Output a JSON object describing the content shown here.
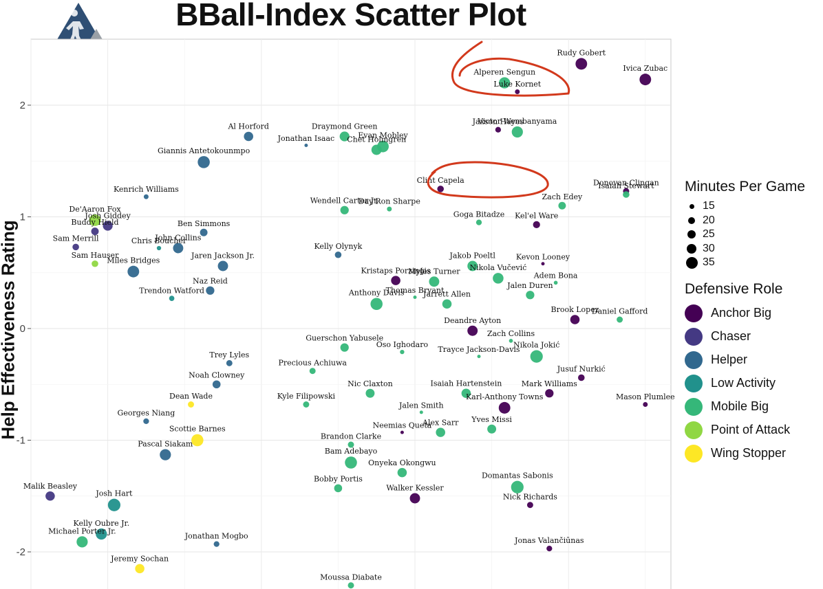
{
  "title": "BBall-Index Scatter Plot",
  "chart_data": {
    "type": "scatter",
    "title": "BBall-Index Scatter Plot",
    "xlabel": "",
    "ylabel": "Help Effectiveness Rating",
    "xlim": [
      0,
      1
    ],
    "ylim": [
      -2.3,
      2.6
    ],
    "y_ticks": [
      -2,
      -1,
      0,
      1,
      2
    ],
    "y_tick_labels": [
      "-2",
      "-1",
      "0",
      "1",
      "2"
    ],
    "grid": true,
    "legend_position": "right",
    "size_legend": {
      "title": "Minutes Per Game",
      "values": [
        15,
        20,
        25,
        30,
        35
      ]
    },
    "color_legend": {
      "title": "Defensive Role",
      "roles": [
        {
          "name": "Anchor Big",
          "color": "#440154"
        },
        {
          "name": "Chaser",
          "color": "#443983"
        },
        {
          "name": "Helper",
          "color": "#31688e"
        },
        {
          "name": "Low Activity",
          "color": "#21918c"
        },
        {
          "name": "Mobile Big",
          "color": "#35b779"
        },
        {
          "name": "Point of Attack",
          "color": "#90d743"
        },
        {
          "name": "Wing Stopper",
          "color": "#fde725"
        }
      ]
    },
    "points": [
      {
        "label": "Rudy Gobert",
        "x": 0.86,
        "y": 2.37,
        "role": "Anchor Big",
        "mpg": 33
      },
      {
        "label": "Ivica Zubac",
        "x": 0.96,
        "y": 2.23,
        "role": "Anchor Big",
        "mpg": 33
      },
      {
        "label": "Alperen Sengun",
        "x": 0.74,
        "y": 2.2,
        "role": "Mobile Big",
        "mpg": 32
      },
      {
        "label": "Luke Kornet",
        "x": 0.76,
        "y": 2.12,
        "role": "Anchor Big",
        "mpg": 18
      },
      {
        "label": "Jaxson Hayes",
        "x": 0.73,
        "y": 1.78,
        "role": "Anchor Big",
        "mpg": 20
      },
      {
        "label": "Victor Wembanyama",
        "x": 0.76,
        "y": 1.76,
        "role": "Mobile Big",
        "mpg": 32
      },
      {
        "label": "Al Horford",
        "x": 0.34,
        "y": 1.72,
        "role": "Helper",
        "mpg": 28
      },
      {
        "label": "Draymond Green",
        "x": 0.49,
        "y": 1.72,
        "role": "Mobile Big",
        "mpg": 29
      },
      {
        "label": "Jonathan Isaac",
        "x": 0.43,
        "y": 1.64,
        "role": "Helper",
        "mpg": 15
      },
      {
        "label": "Evan Mobley",
        "x": 0.55,
        "y": 1.63,
        "role": "Mobile Big",
        "mpg": 33
      },
      {
        "label": "Chet Holmgren",
        "x": 0.54,
        "y": 1.6,
        "role": "Mobile Big",
        "mpg": 30
      },
      {
        "label": "Giannis Antetokounmpo",
        "x": 0.27,
        "y": 1.49,
        "role": "Helper",
        "mpg": 34
      },
      {
        "label": "Clint Capela",
        "x": 0.64,
        "y": 1.25,
        "role": "Anchor Big",
        "mpg": 22
      },
      {
        "label": "Donovan Clingan",
        "x": 0.93,
        "y": 1.23,
        "role": "Anchor Big",
        "mpg": 21
      },
      {
        "label": "Kenrich Williams",
        "x": 0.18,
        "y": 1.18,
        "role": "Helper",
        "mpg": 18
      },
      {
        "label": "Isaiah Stewart",
        "x": 0.93,
        "y": 1.2,
        "role": "Mobile Big",
        "mpg": 22
      },
      {
        "label": "Day'Ron Sharpe",
        "x": 0.56,
        "y": 1.07,
        "role": "Mobile Big",
        "mpg": 18
      },
      {
        "label": "Wendell Carter Jr.",
        "x": 0.49,
        "y": 1.06,
        "role": "Mobile Big",
        "mpg": 26
      },
      {
        "label": "Zach Edey",
        "x": 0.83,
        "y": 1.1,
        "role": "Mobile Big",
        "mpg": 24
      },
      {
        "label": "De'Aaron Fox",
        "x": 0.1,
        "y": 0.97,
        "role": "Point of Attack",
        "mpg": 33
      },
      {
        "label": "Josh Giddey",
        "x": 0.12,
        "y": 0.92,
        "role": "Chaser",
        "mpg": 29
      },
      {
        "label": "Goga Bitadze",
        "x": 0.7,
        "y": 0.95,
        "role": "Mobile Big",
        "mpg": 20
      },
      {
        "label": "Kel'el Ware",
        "x": 0.79,
        "y": 0.93,
        "role": "Anchor Big",
        "mpg": 23
      },
      {
        "label": "Ben Simmons",
        "x": 0.27,
        "y": 0.86,
        "role": "Helper",
        "mpg": 24
      },
      {
        "label": "Buddy Hield",
        "x": 0.1,
        "y": 0.87,
        "role": "Chaser",
        "mpg": 24
      },
      {
        "label": "Chris Boucher",
        "x": 0.2,
        "y": 0.72,
        "role": "Low Activity",
        "mpg": 17
      },
      {
        "label": "John Collins",
        "x": 0.23,
        "y": 0.72,
        "role": "Helper",
        "mpg": 30
      },
      {
        "label": "Sam Merrill",
        "x": 0.07,
        "y": 0.73,
        "role": "Chaser",
        "mpg": 22
      },
      {
        "label": "Kelly Olynyk",
        "x": 0.48,
        "y": 0.66,
        "role": "Helper",
        "mpg": 22
      },
      {
        "label": "Sam Hauser",
        "x": 0.1,
        "y": 0.58,
        "role": "Point of Attack",
        "mpg": 22
      },
      {
        "label": "Miles Bridges",
        "x": 0.16,
        "y": 0.51,
        "role": "Helper",
        "mpg": 33
      },
      {
        "label": "Jaren Jackson Jr.",
        "x": 0.3,
        "y": 0.56,
        "role": "Helper",
        "mpg": 30
      },
      {
        "label": "Jakob Poeltl",
        "x": 0.69,
        "y": 0.56,
        "role": "Mobile Big",
        "mpg": 30
      },
      {
        "label": "Kevon Looney",
        "x": 0.8,
        "y": 0.58,
        "role": "Anchor Big",
        "mpg": 15
      },
      {
        "label": "Kristaps Porziņģis",
        "x": 0.57,
        "y": 0.43,
        "role": "Anchor Big",
        "mpg": 28
      },
      {
        "label": "Myles Turner",
        "x": 0.63,
        "y": 0.42,
        "role": "Mobile Big",
        "mpg": 30
      },
      {
        "label": "Nikola Vučević",
        "x": 0.73,
        "y": 0.45,
        "role": "Mobile Big",
        "mpg": 31
      },
      {
        "label": "Adem Bona",
        "x": 0.82,
        "y": 0.41,
        "role": "Mobile Big",
        "mpg": 16
      },
      {
        "label": "Naz Reid",
        "x": 0.28,
        "y": 0.34,
        "role": "Helper",
        "mpg": 26
      },
      {
        "label": "Trendon Watford",
        "x": 0.22,
        "y": 0.27,
        "role": "Low Activity",
        "mpg": 19
      },
      {
        "label": "Thomas Bryant",
        "x": 0.6,
        "y": 0.28,
        "role": "Mobile Big",
        "mpg": 15
      },
      {
        "label": "Anthony Davis",
        "x": 0.54,
        "y": 0.22,
        "role": "Mobile Big",
        "mpg": 34
      },
      {
        "label": "Jarrett Allen",
        "x": 0.65,
        "y": 0.22,
        "role": "Mobile Big",
        "mpg": 28
      },
      {
        "label": "Jalen Duren",
        "x": 0.78,
        "y": 0.3,
        "role": "Mobile Big",
        "mpg": 26
      },
      {
        "label": "Brook Lopez",
        "x": 0.85,
        "y": 0.08,
        "role": "Anchor Big",
        "mpg": 28
      },
      {
        "label": "Daniel Gafford",
        "x": 0.92,
        "y": 0.08,
        "role": "Mobile Big",
        "mpg": 21
      },
      {
        "label": "Deandre Ayton",
        "x": 0.69,
        "y": -0.02,
        "role": "Anchor Big",
        "mpg": 30
      },
      {
        "label": "Zach Collins",
        "x": 0.75,
        "y": -0.11,
        "role": "Mobile Big",
        "mpg": 16
      },
      {
        "label": "Guerschon Yabusele",
        "x": 0.49,
        "y": -0.17,
        "role": "Mobile Big",
        "mpg": 26
      },
      {
        "label": "Oso Ighodaro",
        "x": 0.58,
        "y": -0.21,
        "role": "Mobile Big",
        "mpg": 17
      },
      {
        "label": "Trayce Jackson-Davis",
        "x": 0.7,
        "y": -0.25,
        "role": "Mobile Big",
        "mpg": 15
      },
      {
        "label": "Nikola Jokić",
        "x": 0.79,
        "y": -0.25,
        "role": "Mobile Big",
        "mpg": 35
      },
      {
        "label": "Trey Lyles",
        "x": 0.31,
        "y": -0.31,
        "role": "Helper",
        "mpg": 21
      },
      {
        "label": "Precious Achiuwa",
        "x": 0.44,
        "y": -0.38,
        "role": "Mobile Big",
        "mpg": 21
      },
      {
        "label": "Jusuf Nurkić",
        "x": 0.86,
        "y": -0.44,
        "role": "Anchor Big",
        "mpg": 22
      },
      {
        "label": "Noah Clowney",
        "x": 0.29,
        "y": -0.5,
        "role": "Helper",
        "mpg": 25
      },
      {
        "label": "Nic Claxton",
        "x": 0.53,
        "y": -0.58,
        "role": "Mobile Big",
        "mpg": 27
      },
      {
        "label": "Isaiah Hartenstein",
        "x": 0.68,
        "y": -0.58,
        "role": "Mobile Big",
        "mpg": 28
      },
      {
        "label": "Mark Williams",
        "x": 0.81,
        "y": -0.58,
        "role": "Anchor Big",
        "mpg": 26
      },
      {
        "label": "Dean Wade",
        "x": 0.25,
        "y": -0.68,
        "role": "Wing Stopper",
        "mpg": 21
      },
      {
        "label": "Kyle Filipowski",
        "x": 0.43,
        "y": -0.68,
        "role": "Mobile Big",
        "mpg": 21
      },
      {
        "label": "Jalen Smith",
        "x": 0.61,
        "y": -0.75,
        "role": "Mobile Big",
        "mpg": 15
      },
      {
        "label": "Karl-Anthony Towns",
        "x": 0.74,
        "y": -0.71,
        "role": "Anchor Big",
        "mpg": 33
      },
      {
        "label": "Mason Plumlee",
        "x": 0.96,
        "y": -0.68,
        "role": "Anchor Big",
        "mpg": 18
      },
      {
        "label": "Neemias Queta",
        "x": 0.58,
        "y": -0.93,
        "role": "Anchor Big",
        "mpg": 15
      },
      {
        "label": "Georges Niang",
        "x": 0.18,
        "y": -0.83,
        "role": "Helper",
        "mpg": 20
      },
      {
        "label": "Alex Sarr",
        "x": 0.64,
        "y": -0.93,
        "role": "Mobile Big",
        "mpg": 28
      },
      {
        "label": "Yves Missi",
        "x": 0.72,
        "y": -0.9,
        "role": "Mobile Big",
        "mpg": 27
      },
      {
        "label": "Brandon Clarke",
        "x": 0.5,
        "y": -1.04,
        "role": "Mobile Big",
        "mpg": 21
      },
      {
        "label": "Scottie Barnes",
        "x": 0.26,
        "y": -1.0,
        "role": "Wing Stopper",
        "mpg": 34
      },
      {
        "label": "Bam Adebayo",
        "x": 0.5,
        "y": -1.2,
        "role": "Mobile Big",
        "mpg": 34
      },
      {
        "label": "Pascal Siakam",
        "x": 0.21,
        "y": -1.13,
        "role": "Helper",
        "mpg": 32
      },
      {
        "label": "Onyeka Okongwu",
        "x": 0.58,
        "y": -1.29,
        "role": "Mobile Big",
        "mpg": 28
      },
      {
        "label": "Bobby Portis",
        "x": 0.48,
        "y": -1.43,
        "role": "Mobile Big",
        "mpg": 25
      },
      {
        "label": "Domantas Sabonis",
        "x": 0.76,
        "y": -1.42,
        "role": "Mobile Big",
        "mpg": 35
      },
      {
        "label": "Walker Kessler",
        "x": 0.6,
        "y": -1.52,
        "role": "Anchor Big",
        "mpg": 30
      },
      {
        "label": "Nick Richards",
        "x": 0.78,
        "y": -1.58,
        "role": "Anchor Big",
        "mpg": 21
      },
      {
        "label": "Malik Beasley",
        "x": 0.03,
        "y": -1.5,
        "role": "Chaser",
        "mpg": 28
      },
      {
        "label": "Josh Hart",
        "x": 0.13,
        "y": -1.58,
        "role": "Low Activity",
        "mpg": 35
      },
      {
        "label": "Kelly Oubre Jr.",
        "x": 0.11,
        "y": -1.84,
        "role": "Low Activity",
        "mpg": 32
      },
      {
        "label": "Michael Porter Jr.",
        "x": 0.08,
        "y": -1.91,
        "role": "Mobile Big",
        "mpg": 32
      },
      {
        "label": "Jonathan Mogbo",
        "x": 0.29,
        "y": -1.93,
        "role": "Helper",
        "mpg": 20
      },
      {
        "label": "Jonas Valančiūnas",
        "x": 0.81,
        "y": -1.97,
        "role": "Anchor Big",
        "mpg": 20
      },
      {
        "label": "Jeremy Sochan",
        "x": 0.17,
        "y": -2.15,
        "role": "Wing Stopper",
        "mpg": 28
      },
      {
        "label": "Moussa Diabate",
        "x": 0.5,
        "y": -2.3,
        "role": "Mobile Big",
        "mpg": 21
      }
    ]
  }
}
